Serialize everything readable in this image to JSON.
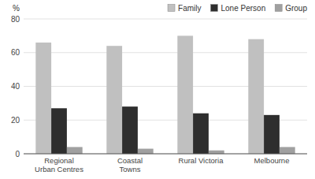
{
  "chart_data": {
    "type": "bar",
    "categories": [
      "Regional\nUrban Centres",
      "Coastal\nTowns",
      "Rural Victoria",
      "Melbourne"
    ],
    "series": [
      {
        "name": "Family",
        "color": "#c0c0c0",
        "values": [
          66,
          64,
          70,
          68
        ]
      },
      {
        "name": "Lone Person",
        "color": "#2e2e2e",
        "values": [
          27,
          28,
          24,
          23
        ]
      },
      {
        "name": "Group",
        "color": "#a0a0a0",
        "values": [
          4,
          3,
          2,
          4
        ]
      }
    ],
    "ylabel": "%",
    "ylim": [
      0,
      80
    ],
    "yticks": [
      0,
      20,
      40,
      60,
      80
    ],
    "grid": true,
    "legend": "upper right"
  }
}
